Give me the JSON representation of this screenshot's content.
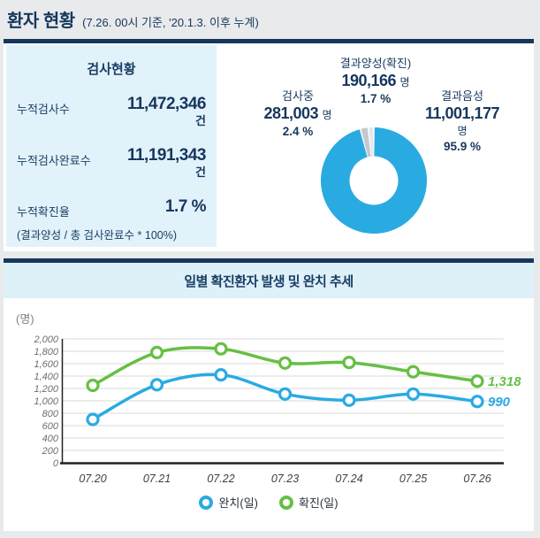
{
  "colors": {
    "navy": "#16375d",
    "accent_blue": "#29abe2",
    "green": "#67bf45",
    "gray_slice": "#c3c8cc",
    "light_slice": "#e4e6e9",
    "grid": "#d9d9d9",
    "axis": "#231f20",
    "tick_text": "#6d6e71"
  },
  "header": {
    "title": "환자 현황",
    "subtitle": "(7.26. 00시 기준, '20.1.3. 이후 누계)"
  },
  "test_panel": {
    "title": "검사현황",
    "rows": [
      {
        "label": "누적검사수",
        "value": "11,472,346",
        "unit": "건"
      },
      {
        "label": "누적검사완료수",
        "value": "11,191,343",
        "unit": "건"
      },
      {
        "label": "누적확진율",
        "value": "1.7 %",
        "unit": ""
      }
    ],
    "footnote": "(결과양성 / 총 검사완료수 * 100%)"
  },
  "donut_labels": {
    "positive": {
      "label": "결과양성(확진)",
      "value": "190,166",
      "unit": "명",
      "pct": "1.7 %"
    },
    "testing": {
      "label": "검사중",
      "value": "281,003",
      "unit": "명",
      "pct": "2.4 %"
    },
    "negative": {
      "label": "결과음성",
      "value": "11,001,177",
      "unit": "명",
      "pct": "95.9 %"
    }
  },
  "trend": {
    "title": "일별 확진환자 발생 및 완치 추세",
    "unit_label": "(명)",
    "legend": [
      {
        "label": "완치(일)",
        "color": "#29abe2"
      },
      {
        "label": "확진(일)",
        "color": "#67bf45"
      }
    ]
  },
  "chart_data": [
    {
      "type": "pie",
      "donut": true,
      "slices": [
        {
          "label": "결과음성",
          "value": 11001177,
          "pct": 95.9,
          "color": "#29abe2"
        },
        {
          "label": "검사중",
          "value": 281003,
          "pct": 2.4,
          "color": "#c3c8cc"
        },
        {
          "label": "결과양성(확진)",
          "value": 190166,
          "pct": 1.7,
          "color": "#e4e6e9"
        }
      ]
    },
    {
      "type": "line",
      "categories": [
        "07.20",
        "07.21",
        "07.22",
        "07.23",
        "07.24",
        "07.25",
        "07.26"
      ],
      "series": [
        {
          "name": "확진(일)",
          "color": "#67bf45",
          "values": [
            1250,
            1780,
            1840,
            1610,
            1620,
            1470,
            1318
          ],
          "end_label": "1,318"
        },
        {
          "name": "완치(일)",
          "color": "#29abe2",
          "values": [
            700,
            1260,
            1420,
            1110,
            1010,
            1110,
            990
          ],
          "end_label": "990"
        }
      ],
      "ylim": [
        0,
        2000
      ],
      "ytick_step": 200,
      "ylabel": "(명)",
      "grid": true,
      "legend_position": "bottom"
    }
  ]
}
